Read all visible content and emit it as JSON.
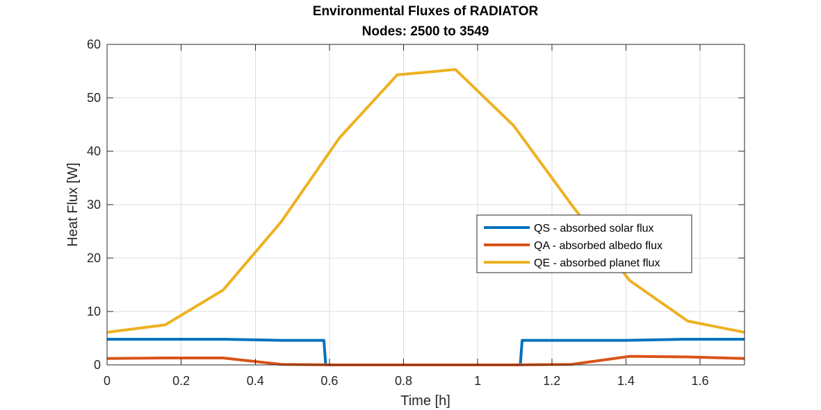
{
  "chart_data": {
    "type": "line",
    "title": "Environmental Fluxes of RADIATOR",
    "subtitle": "Nodes: 2500 to 3549",
    "xlabel": "Time [h]",
    "ylabel": "Heat Flux [W]",
    "xlim": [
      0,
      1.72
    ],
    "ylim": [
      0,
      60
    ],
    "xticks": [
      0,
      0.2,
      0.4,
      0.6,
      0.8,
      1,
      1.2,
      1.4,
      1.6
    ],
    "xtick_labels": [
      "0",
      "0.2",
      "0.4",
      "0.6",
      "0.8",
      "1",
      "1.2",
      "1.4",
      "1.6"
    ],
    "yticks": [
      0,
      10,
      20,
      30,
      40,
      50,
      60
    ],
    "ytick_labels": [
      "0",
      "10",
      "20",
      "30",
      "40",
      "50",
      "60"
    ],
    "grid": true,
    "legend_position": "center-right",
    "series": [
      {
        "name": "QS - absorbed solar flux",
        "color": "#0072BD",
        "x": [
          0,
          0.157,
          0.313,
          0.47,
          0.585,
          0.59,
          1.115,
          1.12,
          1.25,
          1.4,
          1.56,
          1.72
        ],
        "y": [
          4.8,
          4.8,
          4.8,
          4.6,
          4.6,
          0,
          0,
          4.6,
          4.6,
          4.6,
          4.8,
          4.8
        ]
      },
      {
        "name": "QA - absorbed albedo flux",
        "color": "#D95319",
        "x": [
          0,
          0.157,
          0.313,
          0.47,
          0.627,
          0.783,
          0.94,
          1.097,
          1.253,
          1.41,
          1.567,
          1.72
        ],
        "y": [
          1.2,
          1.3,
          1.3,
          0.1,
          0,
          0,
          0,
          0,
          0.1,
          1.6,
          1.5,
          1.2
        ]
      },
      {
        "name": "QE - absorbed planet flux",
        "color": "#EDB120",
        "x": [
          0,
          0.157,
          0.313,
          0.47,
          0.627,
          0.783,
          0.94,
          1.097,
          1.253,
          1.41,
          1.567,
          1.72
        ],
        "y": [
          6.1,
          7.5,
          14.0,
          26.8,
          42.5,
          54.3,
          55.3,
          44.8,
          30.0,
          15.8,
          8.2,
          6.1
        ]
      }
    ]
  }
}
